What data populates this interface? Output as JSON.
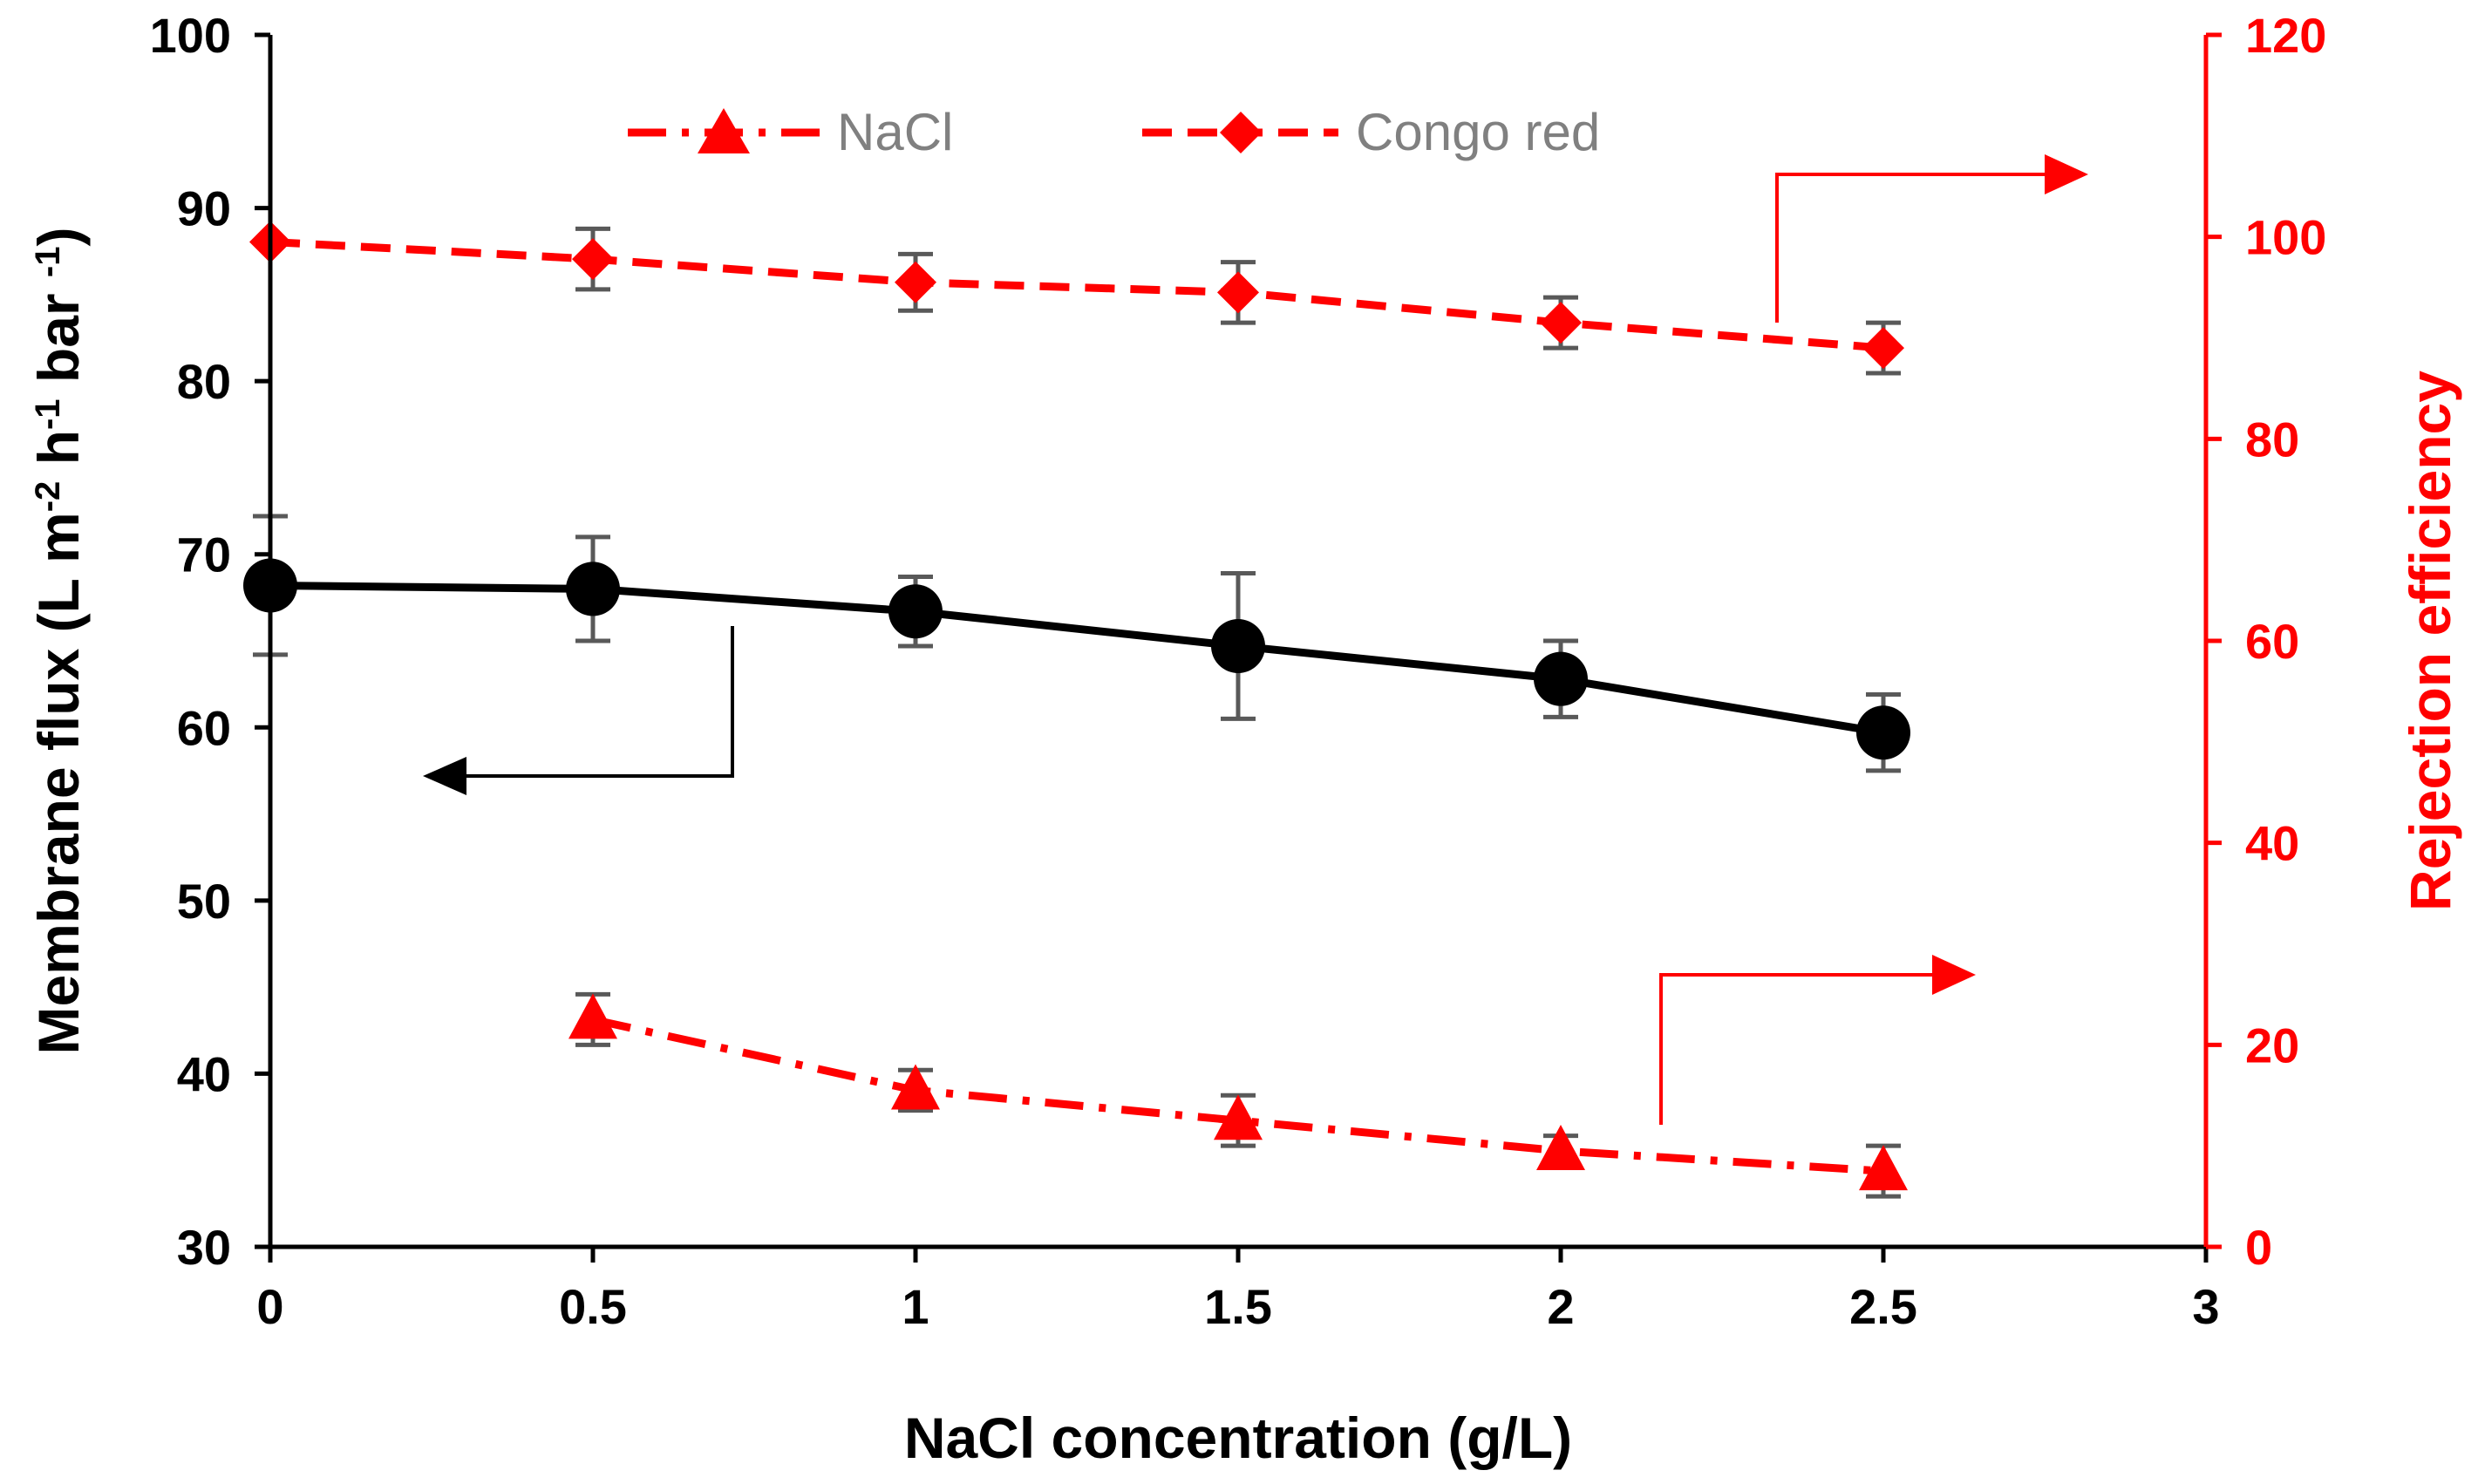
{
  "chart_data": {
    "type": "line",
    "xlabel": "NaCl concentration (g/L)",
    "ylabel_left": "Membrane flux (L m-2 h-1 bar -1)",
    "ylabel_left_parts": [
      "Membrane flux (L m",
      "-2",
      " h",
      "-1",
      " bar ",
      "-1",
      ")"
    ],
    "ylabel_right": "Rejection efficiency",
    "xlim": [
      0,
      3
    ],
    "ylim_left": [
      30,
      100
    ],
    "ylim_right": [
      0,
      120
    ],
    "x_ticks": [
      "0",
      "0.5",
      "1",
      "1.5",
      "2",
      "2.5",
      "3"
    ],
    "y_ticks_left": [
      "30",
      "40",
      "50",
      "60",
      "70",
      "80",
      "90",
      "100"
    ],
    "y_ticks_right": [
      "0",
      "20",
      "40",
      "60",
      "80",
      "100",
      "120"
    ],
    "grid": false,
    "legend_position": "top-center",
    "series": [
      {
        "name": "NaCl",
        "axis": "right",
        "marker": "triangle",
        "line_style": "dash-dot",
        "color": "#ff0000",
        "x": [
          0.5,
          1,
          1.5,
          2,
          2.5
        ],
        "y": [
          22.5,
          15.5,
          12.5,
          9.5,
          7.5
        ],
        "error": [
          2.5,
          2,
          2.5,
          1.5,
          2.5
        ]
      },
      {
        "name": "Congo red",
        "axis": "right",
        "marker": "diamond",
        "line_style": "dashed",
        "color": "#ff0000",
        "x": [
          0,
          0.5,
          1,
          1.5,
          2,
          2.5
        ],
        "y": [
          99.5,
          97.8,
          95.5,
          94.5,
          91.5,
          89
        ],
        "error": [
          0,
          3,
          2.8,
          3,
          2.5,
          2.5
        ]
      },
      {
        "axis": "left",
        "marker": "circle",
        "line_style": "solid",
        "color": "#000000",
        "x": [
          0,
          0.5,
          1,
          1.5,
          2,
          2.5
        ],
        "y": [
          68.2,
          68,
          66.7,
          64.7,
          62.8,
          59.7
        ],
        "error": [
          4,
          3,
          2,
          4.2,
          2.2,
          2.2
        ]
      }
    ]
  }
}
